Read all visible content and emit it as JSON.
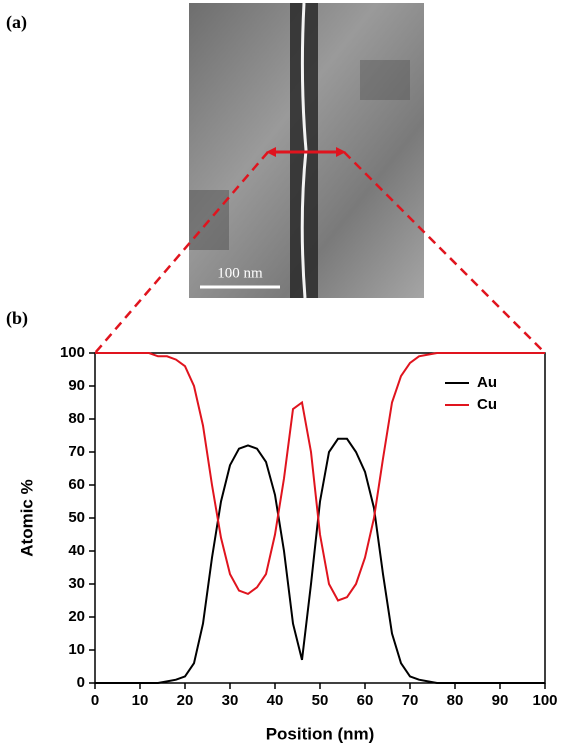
{
  "panel_labels": [
    "(a)",
    "(b)"
  ],
  "image": {
    "scale_bar": "100 nm"
  },
  "chart_data": {
    "type": "line",
    "x_label": "Position (nm)",
    "y_label": "Atomic %",
    "x": [
      0,
      2,
      4,
      6,
      8,
      10,
      12,
      14,
      16,
      18,
      20,
      22,
      24,
      26,
      28,
      30,
      32,
      34,
      36,
      38,
      40,
      42,
      44,
      46,
      48,
      50,
      52,
      54,
      56,
      58,
      60,
      62,
      64,
      66,
      68,
      70,
      72,
      74,
      76,
      78,
      80,
      82,
      84,
      86,
      88,
      90,
      92,
      94,
      96,
      98,
      100
    ],
    "series": [
      {
        "name": "Au",
        "color": "#000000",
        "values": [
          0,
          0,
          0,
          0,
          0,
          0,
          0,
          0,
          0.5,
          1,
          2,
          6,
          18,
          38,
          55,
          66,
          71,
          72,
          71,
          67,
          57,
          40,
          18,
          7,
          30,
          55,
          70,
          74,
          74,
          70,
          64,
          53,
          33,
          15,
          6,
          2,
          1,
          0.5,
          0,
          0,
          0,
          0,
          0,
          0,
          0,
          0,
          0,
          0,
          0,
          0,
          0
        ]
      },
      {
        "name": "Cu",
        "color": "#e0141e",
        "values": [
          100,
          100,
          100,
          100,
          100,
          100,
          100,
          99,
          99,
          98,
          96,
          90,
          78,
          60,
          44,
          33,
          28,
          27,
          29,
          33,
          45,
          62,
          83,
          85,
          70,
          45,
          30,
          25,
          26,
          30,
          38,
          50,
          68,
          85,
          93,
          97,
          99,
          99.5,
          100,
          100,
          100,
          100,
          100,
          100,
          100,
          100,
          100,
          100,
          100,
          100,
          100
        ]
      }
    ],
    "xlim": [
      0,
      100
    ],
    "ylim": [
      0,
      100
    ],
    "xticks": [
      0,
      10,
      20,
      30,
      40,
      50,
      60,
      70,
      80,
      90,
      100
    ],
    "yticks": [
      0,
      10,
      20,
      30,
      40,
      50,
      60,
      70,
      80,
      90,
      100
    ],
    "legend": "upper right"
  }
}
